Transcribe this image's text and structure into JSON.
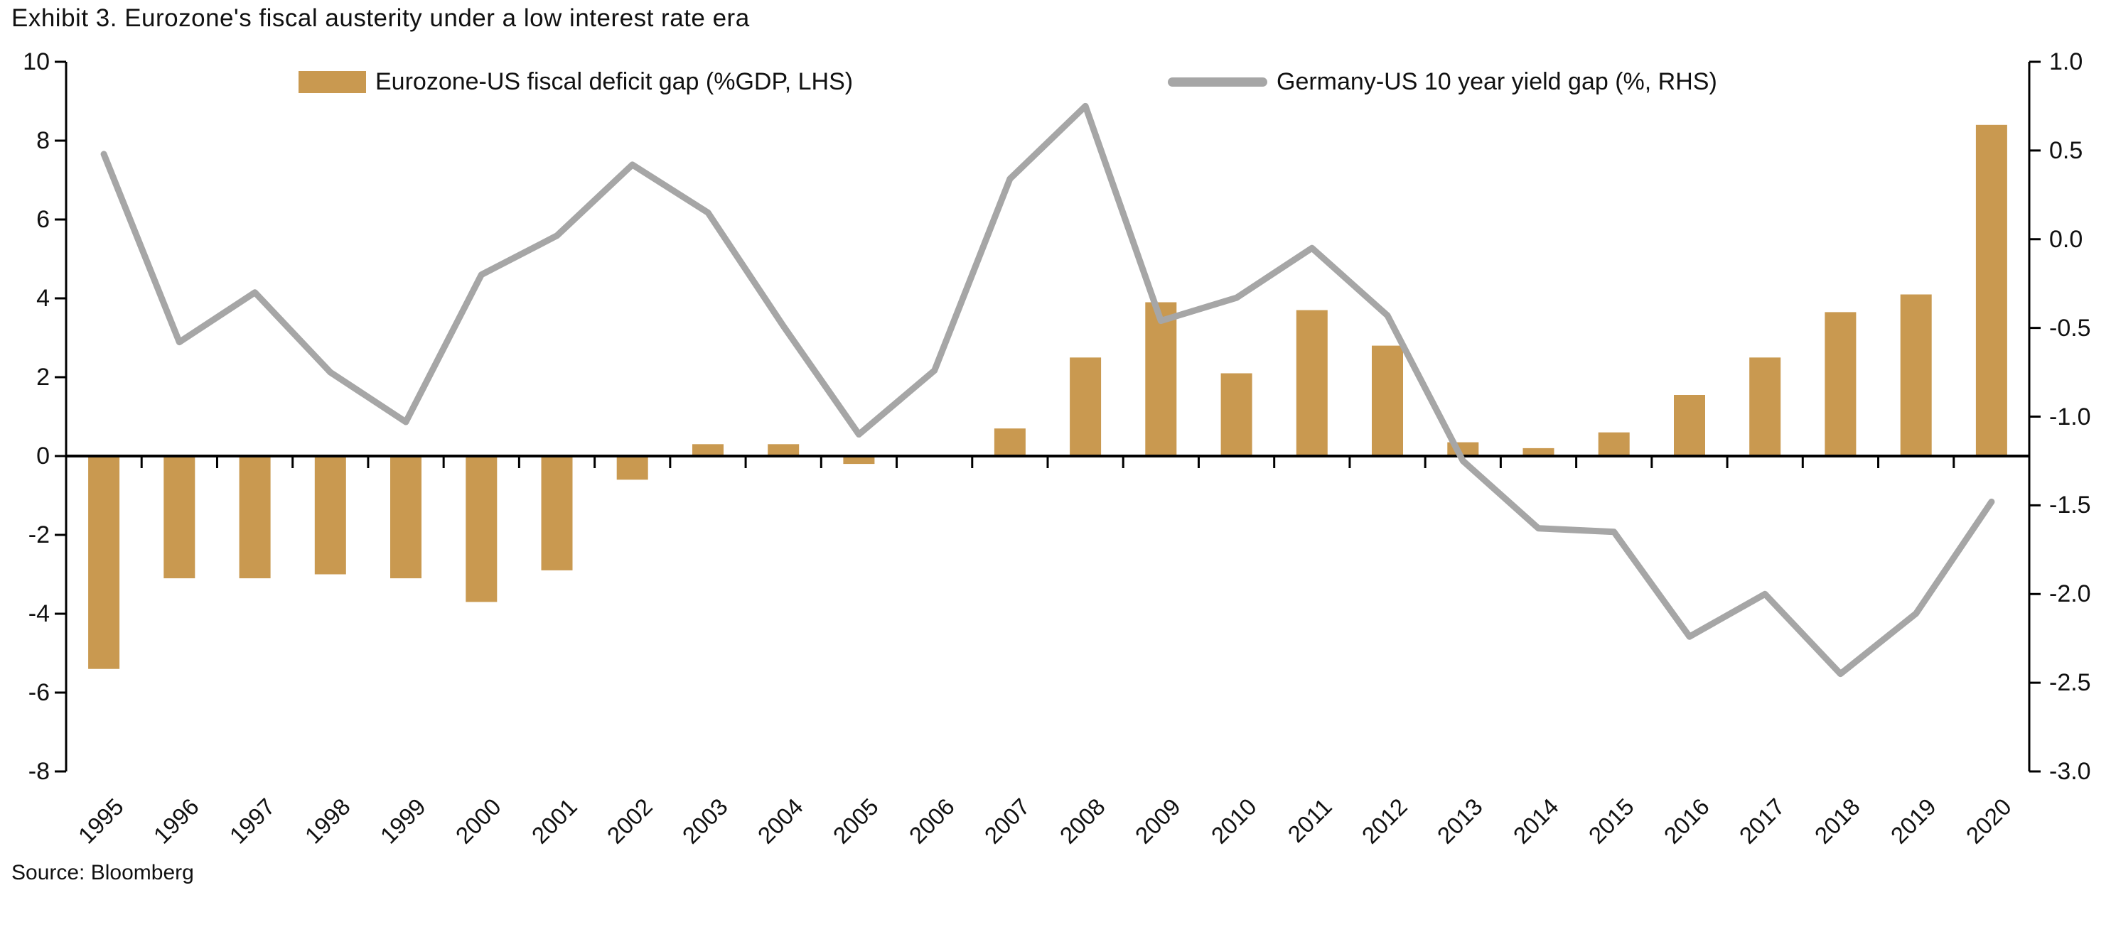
{
  "chart_data": {
    "type": "bar-line-dual-axis",
    "title": "Exhibit 3. Eurozone's fiscal austerity under a low interest rate era",
    "source": "Source: Bloomberg",
    "categories": [
      "1995",
      "1996",
      "1997",
      "1998",
      "1999",
      "2000",
      "2001",
      "2002",
      "2003",
      "2004",
      "2005",
      "2006",
      "2007",
      "2008",
      "2009",
      "2010",
      "2011",
      "2012",
      "2013",
      "2014",
      "2015",
      "2016",
      "2017",
      "2018",
      "2019",
      "2020"
    ],
    "series": [
      {
        "name": "Eurozone-US fiscal deficit gap (%GDP, LHS)",
        "type": "bar",
        "axis": "left",
        "color": "#C99950",
        "values": [
          -5.4,
          -3.1,
          -3.1,
          -3.0,
          -3.1,
          -3.7,
          -2.9,
          -0.6,
          0.3,
          0.3,
          -0.2,
          0.0,
          0.7,
          2.5,
          3.9,
          2.1,
          3.7,
          2.8,
          0.35,
          0.2,
          0.6,
          1.55,
          2.5,
          3.65,
          4.1,
          8.4
        ]
      },
      {
        "name": "Germany-US 10 year yield gap (%, RHS)",
        "type": "line",
        "axis": "right",
        "color": "#A6A6A6",
        "values": [
          0.48,
          -0.58,
          -0.3,
          -0.75,
          -1.03,
          -0.2,
          0.02,
          0.42,
          0.15,
          -0.49,
          -1.1,
          -0.74,
          0.34,
          0.75,
          -0.46,
          -0.33,
          -0.05,
          -0.43,
          -1.25,
          -1.63,
          -1.65,
          -2.24,
          -2.0,
          -2.45,
          -2.11,
          -1.48
        ]
      }
    ],
    "left_axis": {
      "min": -8,
      "max": 10,
      "tick_step": 2,
      "tick_labels": [
        "10",
        "8",
        "6",
        "4",
        "2",
        "0",
        "-2",
        "-4",
        "-6",
        "-8"
      ]
    },
    "right_axis": {
      "min": -3.0,
      "max": 1.0,
      "tick_step": 0.5,
      "tick_labels": [
        "1.0",
        "0.5",
        "0.0",
        "-0.5",
        "-1.0",
        "-1.5",
        "-2.0",
        "-2.5",
        "-3.0"
      ]
    },
    "grid": false,
    "legend_position": "top",
    "axis_color": "#000000",
    "text_color": "#111111"
  }
}
